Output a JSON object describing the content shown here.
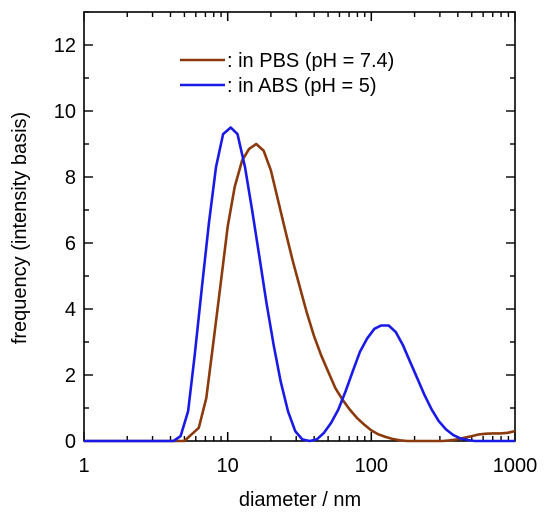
{
  "chart_data": {
    "type": "line",
    "title": "",
    "xlabel": "diameter / nm",
    "ylabel": "frequency (intensity basis)",
    "x_scale": "log",
    "xlim": [
      1,
      1000
    ],
    "ylim": [
      0,
      13
    ],
    "x_ticks": [
      1,
      10,
      100,
      1000
    ],
    "x_tick_labels": [
      "1",
      "10",
      "100",
      "1000"
    ],
    "y_ticks": [
      0,
      2,
      4,
      6,
      8,
      10,
      12
    ],
    "y_tick_labels": [
      "0",
      "2",
      "4",
      "6",
      "8",
      "10",
      "12"
    ],
    "grid": false,
    "legend_position": "top-center",
    "series": [
      {
        "name": ": in PBS (pH = 7.4)",
        "color": "#8b3a0e",
        "x": [
          1,
          5.0,
          5.6,
          6.3,
          7.1,
          7.9,
          8.9,
          10,
          11.2,
          12.6,
          14.1,
          15.8,
          17.8,
          20,
          22.4,
          25.1,
          28.2,
          31.6,
          35.5,
          39.8,
          44.7,
          50.1,
          56.2,
          63.1,
          70.8,
          79.4,
          89.1,
          100,
          112,
          126,
          141,
          158,
          178,
          200,
          224,
          251,
          282,
          316,
          355,
          398,
          447,
          501,
          562,
          631,
          708,
          794,
          891,
          1000
        ],
        "y": [
          0,
          0,
          0.2,
          0.4,
          1.3,
          2.9,
          4.7,
          6.5,
          7.7,
          8.5,
          8.85,
          9.0,
          8.8,
          8.2,
          7.3,
          6.4,
          5.5,
          4.7,
          3.9,
          3.2,
          2.6,
          2.1,
          1.6,
          1.25,
          0.95,
          0.7,
          0.5,
          0.32,
          0.2,
          0.12,
          0.06,
          0.02,
          0,
          0,
          0,
          0,
          0,
          0,
          0.02,
          0.05,
          0.1,
          0.15,
          0.2,
          0.22,
          0.23,
          0.23,
          0.25,
          0.3
        ]
      },
      {
        "name": ": in ABS (pH = 5)",
        "color": "#1a1ae6",
        "x": [
          1,
          4.2,
          4.7,
          5.3,
          5.9,
          6.6,
          7.4,
          8.3,
          9.3,
          10.5,
          11.7,
          13.2,
          14.8,
          16.6,
          18.6,
          20.9,
          23.4,
          26.3,
          29.5,
          33.1,
          37.2,
          41.7,
          46.8,
          52.5,
          58.9,
          66.1,
          74.1,
          83.2,
          93.3,
          105,
          117,
          132,
          148,
          166,
          186,
          209,
          234,
          263,
          295,
          331,
          372,
          417,
          468,
          525,
          589,
          1000
        ],
        "y": [
          0,
          0,
          0.15,
          0.9,
          2.6,
          4.6,
          6.6,
          8.3,
          9.3,
          9.5,
          9.3,
          8.3,
          7.0,
          5.6,
          4.2,
          2.9,
          1.8,
          0.9,
          0.3,
          0.05,
          0,
          0.05,
          0.25,
          0.55,
          0.95,
          1.5,
          2.1,
          2.7,
          3.1,
          3.4,
          3.5,
          3.5,
          3.3,
          2.9,
          2.4,
          1.9,
          1.4,
          0.95,
          0.6,
          0.35,
          0.18,
          0.08,
          0.03,
          0,
          0,
          0
        ]
      }
    ]
  }
}
